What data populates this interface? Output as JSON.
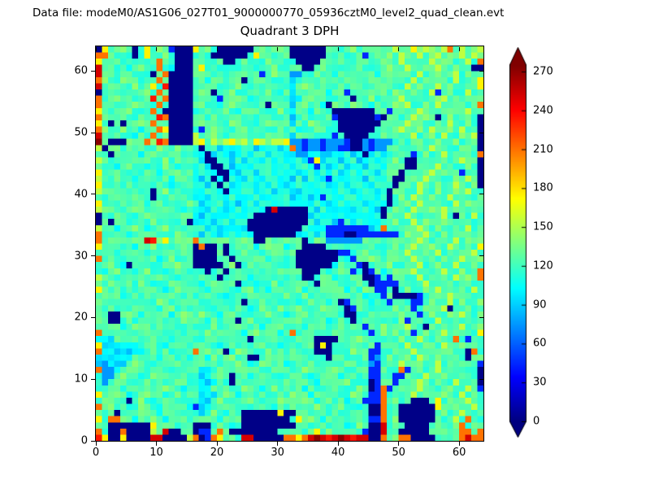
{
  "header": {
    "data_file_label": "Data file: modeM0/AS1G06_027T01_9000000770_05936cztM0_level2_quad_clean.evt"
  },
  "colors": {
    "background": "#ffffff",
    "text": "#000000",
    "axis": "#000000"
  },
  "chart_data": {
    "type": "heatmap",
    "title": "Quadrant 3 DPH",
    "xlabel": "",
    "ylabel": "",
    "xlim": [
      0,
      64
    ],
    "ylim": [
      0,
      64
    ],
    "x_ticks": [
      0,
      10,
      20,
      30,
      40,
      50,
      60
    ],
    "y_ticks": [
      0,
      10,
      20,
      30,
      40,
      50,
      60
    ],
    "colormap": "jet",
    "colorbar": {
      "ticks": [
        0,
        30,
        60,
        90,
        120,
        150,
        180,
        210,
        240,
        270
      ],
      "vmin": 0,
      "vmax": 275,
      "extend": "both"
    },
    "grid_size": {
      "cols": 64,
      "rows": 64
    },
    "value_palette": {
      "0": 2,
      "1": 45,
      "2": 75,
      "3": 95,
      "4": 112,
      "5": 122,
      "6": 132,
      "7": 155,
      "8": 175,
      "9": 210,
      "A": 235,
      "B": 252,
      "C": 272
    },
    "base_noise": {
      "min": 90,
      "max": 150,
      "amplitude": 11
    },
    "grid_rows_top_to_bottom": [
      "0855650585651000856500000056566500000056556556556766867667967667",
      "9955450585565000565000000585655600000055654515656576675676657676",
      "8565565545955000554550056554655550000565554565566575665756655759",
      "B655545655954000585645556545565555005655455655456557656575565500",
      "B565565550590000556554565551565522556554565565456556575565575656",
      "9655655455950000564555650556545535565545565556555655756556575568",
      "B5565565585A0000556545565545655535655545655545656557565575655658",
      "0565545565950000565055655455654535565545515655565655655715655755",
      "955655455A590000556515565455655433565545650456556575565567556565",
      "9565556545950000565545655545056535655406556554555657556575565569",
      "8556565549500000456556545655456535546550000000561565575655655755",
      "9565545555A90000554655654556554535655451000000105655756505655650",
      "8505055659550000565545655545655535565455000000056557565565755650",
      "9655655455980000515655456555456553556545000000565675565755657550",
      "B556554559550000755654556554556535655541500005566556755657556570",
      "C600065696A90000786767867687677822122122210021222565565565565560",
      "7056556545655655404434434434443492122122110021225655655756556550",
      "6505655456556545440344344344344332234334343403435655156557556559",
      "7655456554565545430044343443444334318344344344445650056556557550",
      "6554565545565455443004344344434434431434434434436550065575655650",
      "8565545565455655344300434434434443443444344344345605655756551560",
      "7656554556554565434030443443443434344314434434445006557565565750",
      "8545565455654556443404344434344334434434434443445056575565575560",
      "7556545550565545434430434434434433443443443444340565575565565755",
      "6565545650546555443443443444344434434144344344340565755655756555",
      "8554655545655546434443434434434434434434434434440556575565575655",
      "76554565545565454434434434440B0000043443443444305655755657556556",
      "0556554565545565434434443400000000034434434434406557556557505575",
      "0505655456554550344344344000000000043443143443445655756556555655",
      "7554556545565455443434443000000000434411111113495565575565565755",
      "9456545565455655434434434400000003443411100111111156557556556555",
      "96566566BA68665696656656650065665605652222225655 6556575565575656",
      "8556554556545565090050565545655456000056545565455655755655755658",
      "5654556545565455000050556554565550000000114565546557565575565575",
      "9565545655456555000045055655456550000000541556545655755656557556",
      "5565405655455655000005605545655550000004556105566556575565575565",
      "5456554565545655550560554565545656000545651501545655756557556559",
      "7554565545655455565505565455654555005654556500151565575565575659",
      "5565455654556554545655605545565556550565545650111156557556556555",
      "8556554565545655554565545655456556455565545565115056556575565575",
      "5655456554565545456554565565545655654556565545515000015655755655",
      "6545565545655456555654550556554554565545015654551565115655756556",
      "5565455655456555655456555456556556545655401565455655156557055655",
      "5500565456554565565545655455655445655456500556555565515655657556",
      "6500554565545565554655505654565556556545550565545561565575565655",
      "5655456554565546455654556554556555456556545615566557550556557556",
      "9556545565455655546556554565554595655456554551565655156557556558",
      "3335655456554565556545565055654556550000545655455565575565595155",
      "8333333565545565565545655456554555650805545655156557556557556555",
      "9333333456554556956550565545655456550004556551155655755655655095",
      "3333335655456554554655655005655656545505655451256556575565565056",
      "3233356554556545556545565456555456554565565452155575565575655651",
      "9223565545655456533565455655456555655456545651155591565575565550",
      "5225655456554565533565055456554565545655456551155116557556556550",
      "5256554565545655533365054565545656554565565450155156575565575560",
      "5565455654565545533655456554565555465565455650191565575655655751",
      "8556545565545655533356545655456565545655456551195655755656557555",
      "5655405654556545533565545654556555654565545611195655000585655755",
      "9565545655456554133556545565545556556545655450095500000085565575",
      "5560545655456555535654550000008005545655456550095600000056557556",
      "8599654556545565556545650000000058565455654551195600000065575955",
      "5500000008565545000565450000000005654556545650 0B5550000565569565",
      "95009000075B00560115950000000056565585655655100B5500000565569959",
      "A80080000BB0000790198555BB000009989BCBABCBABB0095699000056559B99"
    ]
  }
}
